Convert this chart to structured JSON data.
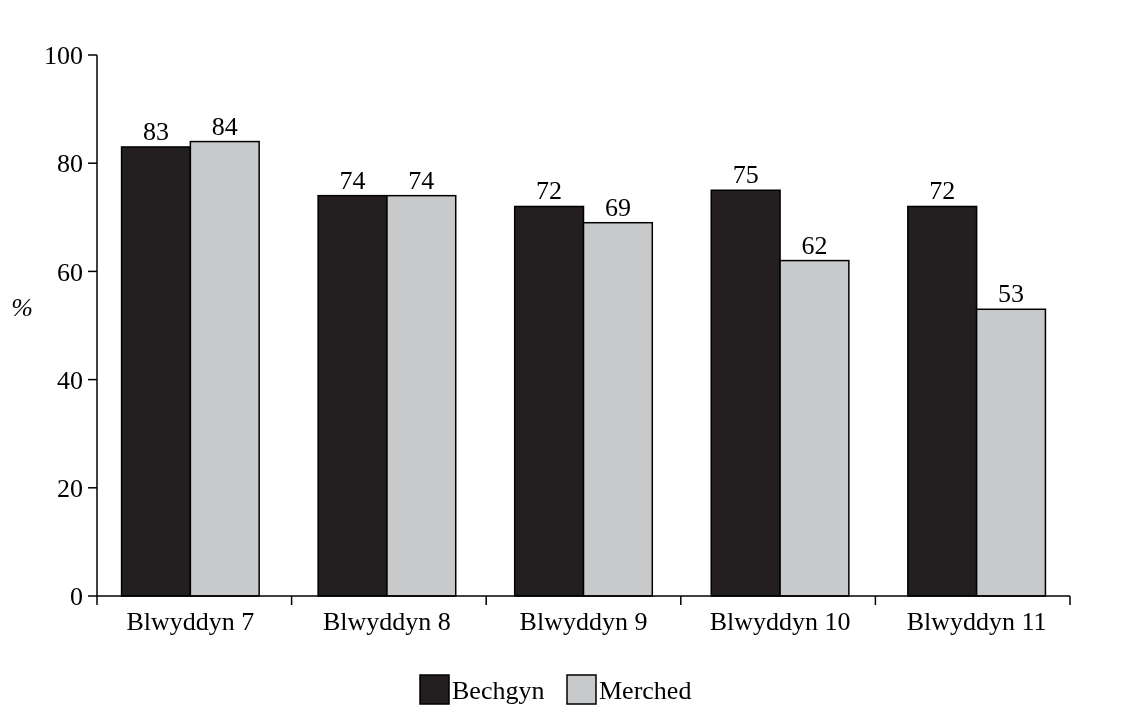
{
  "chart_data": {
    "type": "bar",
    "ylabel": "%",
    "categories": [
      "Blwyddyn 7",
      "Blwyddyn 8",
      "Blwyddyn 9",
      "Blwyddyn 10",
      "Blwyddyn 11"
    ],
    "series": [
      {
        "name": "Bechgyn",
        "color": "#231f20",
        "values": [
          83,
          74,
          72,
          75,
          72
        ]
      },
      {
        "name": "Merched",
        "color": "#c8c9cb",
        "values": [
          84,
          74,
          69,
          62,
          53
        ]
      }
    ],
    "ylim": [
      0,
      100
    ],
    "yticks": [
      0,
      20,
      40,
      60,
      80,
      100
    ],
    "data_labels": true,
    "legend": "bottom",
    "grid": false
  }
}
